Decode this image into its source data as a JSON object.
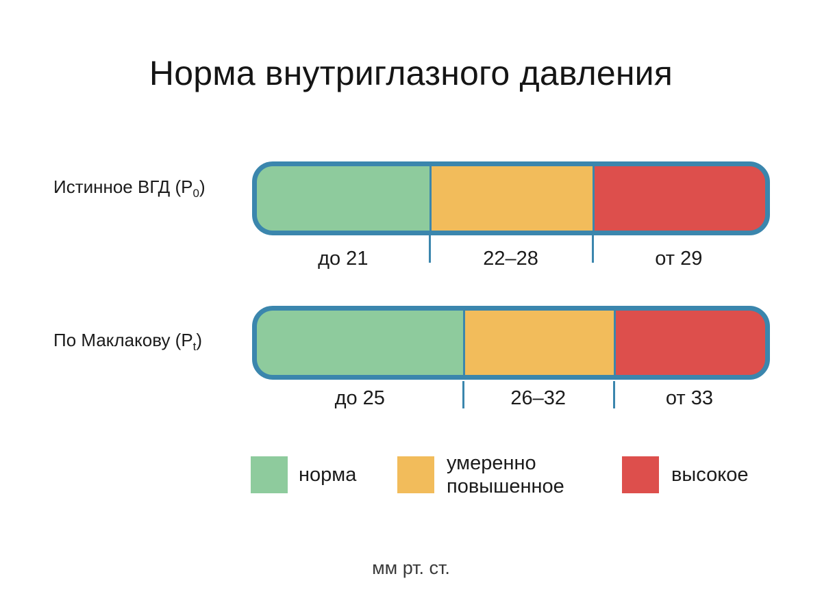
{
  "title": "Норма внутриглазного давления",
  "colors": {
    "normal": "#8ecb9d",
    "moderate": "#f2bc5b",
    "high": "#dd4f4c",
    "outline": "#3b86ad"
  },
  "rows": [
    {
      "label_main": "Истинное ВГД (P",
      "label_sub": "0",
      "label_end": ")",
      "segments": [
        {
          "level": "normal",
          "share": 0.339,
          "label": "до 21"
        },
        {
          "level": "moderate",
          "share": 0.321,
          "label": "22–28"
        },
        {
          "level": "high",
          "share": 0.34,
          "label": "от 29"
        }
      ]
    },
    {
      "label_main": "По Маклакову (P",
      "label_sub": "t",
      "label_end": ")",
      "segments": [
        {
          "level": "normal",
          "share": 0.405,
          "label": "до 25"
        },
        {
          "level": "moderate",
          "share": 0.297,
          "label": "26–32"
        },
        {
          "level": "high",
          "share": 0.298,
          "label": "от 33"
        }
      ]
    }
  ],
  "legend": [
    {
      "level": "normal",
      "line1": "норма",
      "line2": ""
    },
    {
      "level": "moderate",
      "line1": "умеренно",
      "line2": "повышенное"
    },
    {
      "level": "high",
      "line1": "высокое",
      "line2": ""
    }
  ],
  "unit": "мм рт. ст."
}
